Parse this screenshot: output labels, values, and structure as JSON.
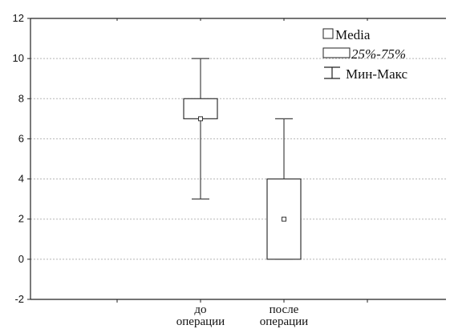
{
  "chart_data": {
    "type": "box",
    "categories": [
      [
        "до",
        "операции"
      ],
      [
        "после",
        "операции"
      ]
    ],
    "boxes": [
      {
        "min": 3,
        "q1": 7,
        "median": 7,
        "q3": 8,
        "max": 10
      },
      {
        "min": 0,
        "q1": 0,
        "median": 2,
        "q3": 4,
        "max": 7
      }
    ],
    "ylim": [
      -2,
      12
    ],
    "yticks": [
      -2,
      0,
      2,
      4,
      6,
      8,
      10,
      12
    ],
    "ytick_labels": [
      "-2",
      "0",
      "2",
      "4",
      "6",
      "8",
      "10",
      "12"
    ],
    "grid": true,
    "legend": {
      "placement": "top-right",
      "items": [
        {
          "symbol": "median-square",
          "label": "Media",
          "italic": false
        },
        {
          "symbol": "box",
          "label": "25%-75%",
          "italic": true
        },
        {
          "symbol": "whisker",
          "label": "Мин-Макс",
          "italic": false
        }
      ]
    },
    "title": "",
    "xlabel": "",
    "ylabel": ""
  }
}
